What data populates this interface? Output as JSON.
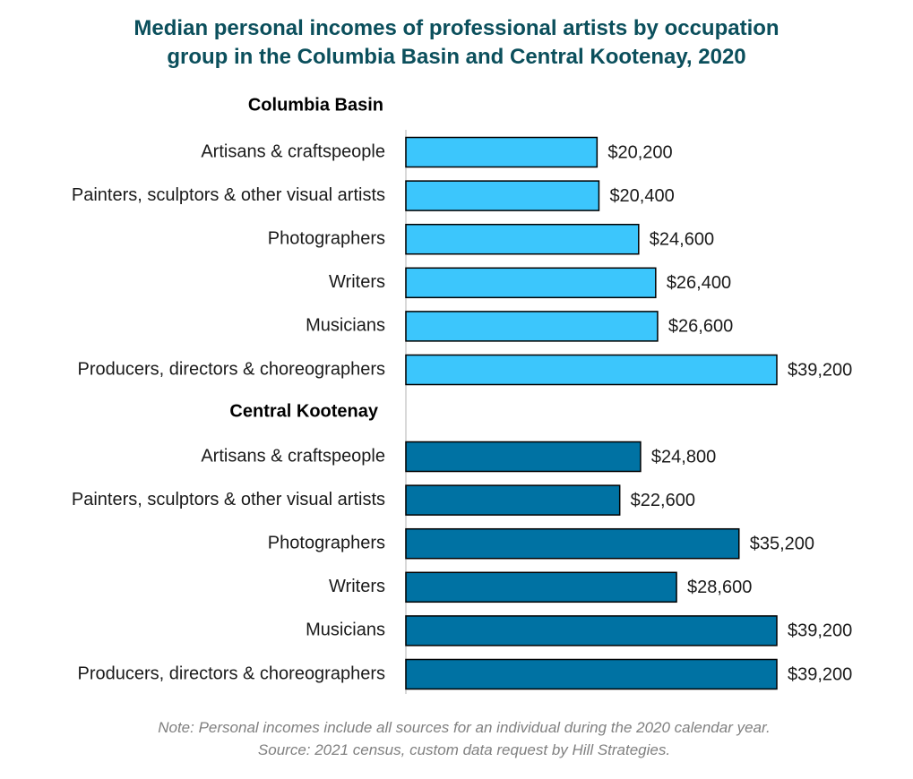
{
  "chart_data": {
    "type": "bar",
    "orientation": "horizontal",
    "title_lines": [
      "Median personal incomes of professional artists by occupation",
      "group in the Columbia Basin and Central Kootenay, 2020"
    ],
    "xlim": [
      0,
      39200
    ],
    "grid": false,
    "legend": "none",
    "groups": [
      {
        "name": "Columbia Basin",
        "color": "#3cc6fc",
        "categories": [
          "Artisans & craftspeople",
          "Painters, sculptors & other visual artists",
          "Photographers",
          "Writers",
          "Musicians",
          "Producers, directors & choreographers"
        ],
        "values": [
          20200,
          20400,
          24600,
          26400,
          26600,
          39200
        ],
        "value_labels": [
          "$20,200",
          "$20,400",
          "$24,600",
          "$26,400",
          "$26,600",
          "$39,200"
        ]
      },
      {
        "name": "Central Kootenay",
        "color": "#0072a3",
        "categories": [
          "Artisans & craftspeople",
          "Painters, sculptors & other visual artists",
          "Photographers",
          "Writers",
          "Musicians",
          "Producers, directors & choreographers"
        ],
        "values": [
          24800,
          22600,
          35200,
          28600,
          39200,
          39200
        ],
        "value_labels": [
          "$24,800",
          "$22,600",
          "$35,200",
          "$28,600",
          "$39,200",
          "$39,200"
        ]
      }
    ]
  },
  "note": {
    "line1": "Note: Personal incomes include all sources for an individual during the 2020 calendar year.",
    "line2": "Source: 2021 census, custom data request by Hill Strategies."
  }
}
